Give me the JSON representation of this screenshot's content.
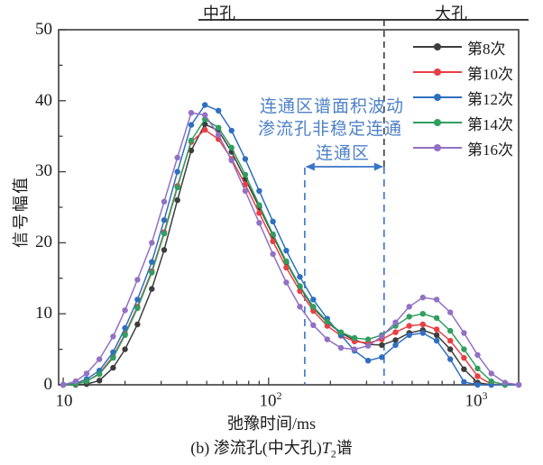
{
  "figure": {
    "region_labels": {
      "mid_pore": "中孔",
      "large_pore": "大孔"
    },
    "y_axis": {
      "title": "信号幅值",
      "ticks": [
        "0",
        "10",
        "20",
        "30",
        "40",
        "50"
      ]
    },
    "x_axis": {
      "title": "弛豫时间/ms",
      "ticks": [
        {
          "base": "10",
          "exp": ""
        },
        {
          "base": "10",
          "exp": "2"
        },
        {
          "base": "10",
          "exp": "3"
        }
      ]
    },
    "caption": {
      "prefix": "(b) 渗流孔(中大孔)",
      "variable": "T",
      "subscript": "2",
      "suffix": "谱"
    },
    "annotation": {
      "line1": "连通区谱面积波动",
      "line2": "渗流孔非稳定连通",
      "range_label": "连通区",
      "text_color": "#4e81c8",
      "dashed_line_color": "#3a74c9",
      "boundary_line_color": "#3d3d3d"
    }
  },
  "legend": {
    "items": [
      {
        "label": "第8次",
        "color": "#3d3d3d"
      },
      {
        "label": "第10次",
        "color": "#e83f44"
      },
      {
        "label": "第12次",
        "color": "#2e6fc0"
      },
      {
        "label": "第14次",
        "color": "#2f9e5f"
      },
      {
        "label": "第16次",
        "color": "#9270c4"
      }
    ]
  },
  "chart_data": {
    "type": "line",
    "title": "",
    "xlabel": "弛豫时间/ms",
    "ylabel": "信号幅值",
    "x_scale": "log",
    "xlim": [
      9.5,
      1650
    ],
    "ylim": [
      0,
      50
    ],
    "grid": false,
    "legend_position": "upper right, no frame",
    "connected_region_ms": [
      150,
      365
    ],
    "pore_boundary_ms": 365,
    "x_ms": [
      10,
      11.5,
      13,
      15,
      17.5,
      20,
      23,
      27,
      31,
      36,
      42,
      49,
      57,
      66,
      77,
      90,
      105,
      122,
      142,
      165,
      193,
      225,
      262,
      305,
      356,
      415,
      484,
      564,
      658,
      767,
      894,
      1042,
      1215,
      1417,
      1652
    ],
    "x_minor_ticks": [
      20,
      30,
      40,
      50,
      60,
      70,
      80,
      90,
      200,
      300,
      400,
      500,
      600,
      700,
      800,
      900
    ],
    "y_major_ticks": [
      0,
      10,
      20,
      30,
      40,
      50
    ],
    "y_minor_ticks": [
      5,
      15,
      25,
      35,
      45
    ],
    "series": [
      {
        "name": "第8次",
        "color": "#3d3d3d",
        "values": [
          0,
          0,
          0.1,
          0.6,
          2.4,
          5.0,
          8.5,
          13.5,
          19.0,
          26.0,
          33.0,
          36.7,
          35.8,
          32.8,
          29.0,
          25.0,
          21.0,
          17.2,
          13.8,
          10.8,
          8.8,
          7.3,
          6.3,
          5.7,
          5.6,
          6.3,
          7.3,
          7.7,
          7.0,
          5.0,
          2.2,
          0.3,
          0,
          null,
          null
        ]
      },
      {
        "name": "第10次",
        "color": "#e83f44",
        "values": [
          0,
          0.1,
          0.5,
          1.6,
          4.0,
          7.2,
          11.0,
          16.0,
          21.5,
          28.0,
          34.2,
          35.9,
          34.6,
          31.8,
          28.2,
          24.2,
          20.2,
          16.5,
          13.2,
          10.4,
          8.3,
          6.9,
          6.1,
          5.9,
          6.4,
          7.4,
          8.3,
          8.5,
          7.8,
          6.2,
          3.8,
          1.2,
          0.1,
          0,
          null
        ]
      },
      {
        "name": "第12次",
        "color": "#2e6fc0",
        "values": [
          0,
          0.2,
          0.8,
          2.0,
          4.6,
          8.0,
          12.0,
          17.3,
          23.2,
          30.0,
          36.6,
          39.4,
          38.6,
          35.8,
          31.8,
          27.3,
          23.0,
          18.9,
          15.2,
          12.0,
          9.3,
          7.0,
          4.8,
          3.4,
          3.9,
          5.6,
          7.0,
          7.3,
          6.2,
          3.6,
          0.4,
          0,
          0,
          0,
          0
        ]
      },
      {
        "name": "第14次",
        "color": "#2f9e5f",
        "values": [
          0,
          0.1,
          0.5,
          1.5,
          3.8,
          7.0,
          10.8,
          15.8,
          21.3,
          27.8,
          34.4,
          37.4,
          36.2,
          33.4,
          29.6,
          25.3,
          21.2,
          17.4,
          13.9,
          11.0,
          8.9,
          7.4,
          6.6,
          6.4,
          7.0,
          8.3,
          9.6,
          10.0,
          9.4,
          7.6,
          5.0,
          2.3,
          0.5,
          0,
          null
        ]
      },
      {
        "name": "第16次",
        "color": "#9270c4",
        "values": [
          0,
          0.5,
          1.6,
          3.6,
          6.8,
          10.5,
          14.8,
          20.0,
          25.8,
          32.0,
          38.3,
          38.0,
          35.2,
          31.6,
          27.3,
          22.8,
          18.4,
          14.4,
          11.0,
          8.4,
          6.4,
          5.2,
          5.0,
          5.5,
          6.8,
          8.8,
          11.0,
          12.3,
          12.0,
          10.2,
          7.3,
          4.2,
          1.6,
          0.3,
          0
        ]
      }
    ]
  }
}
